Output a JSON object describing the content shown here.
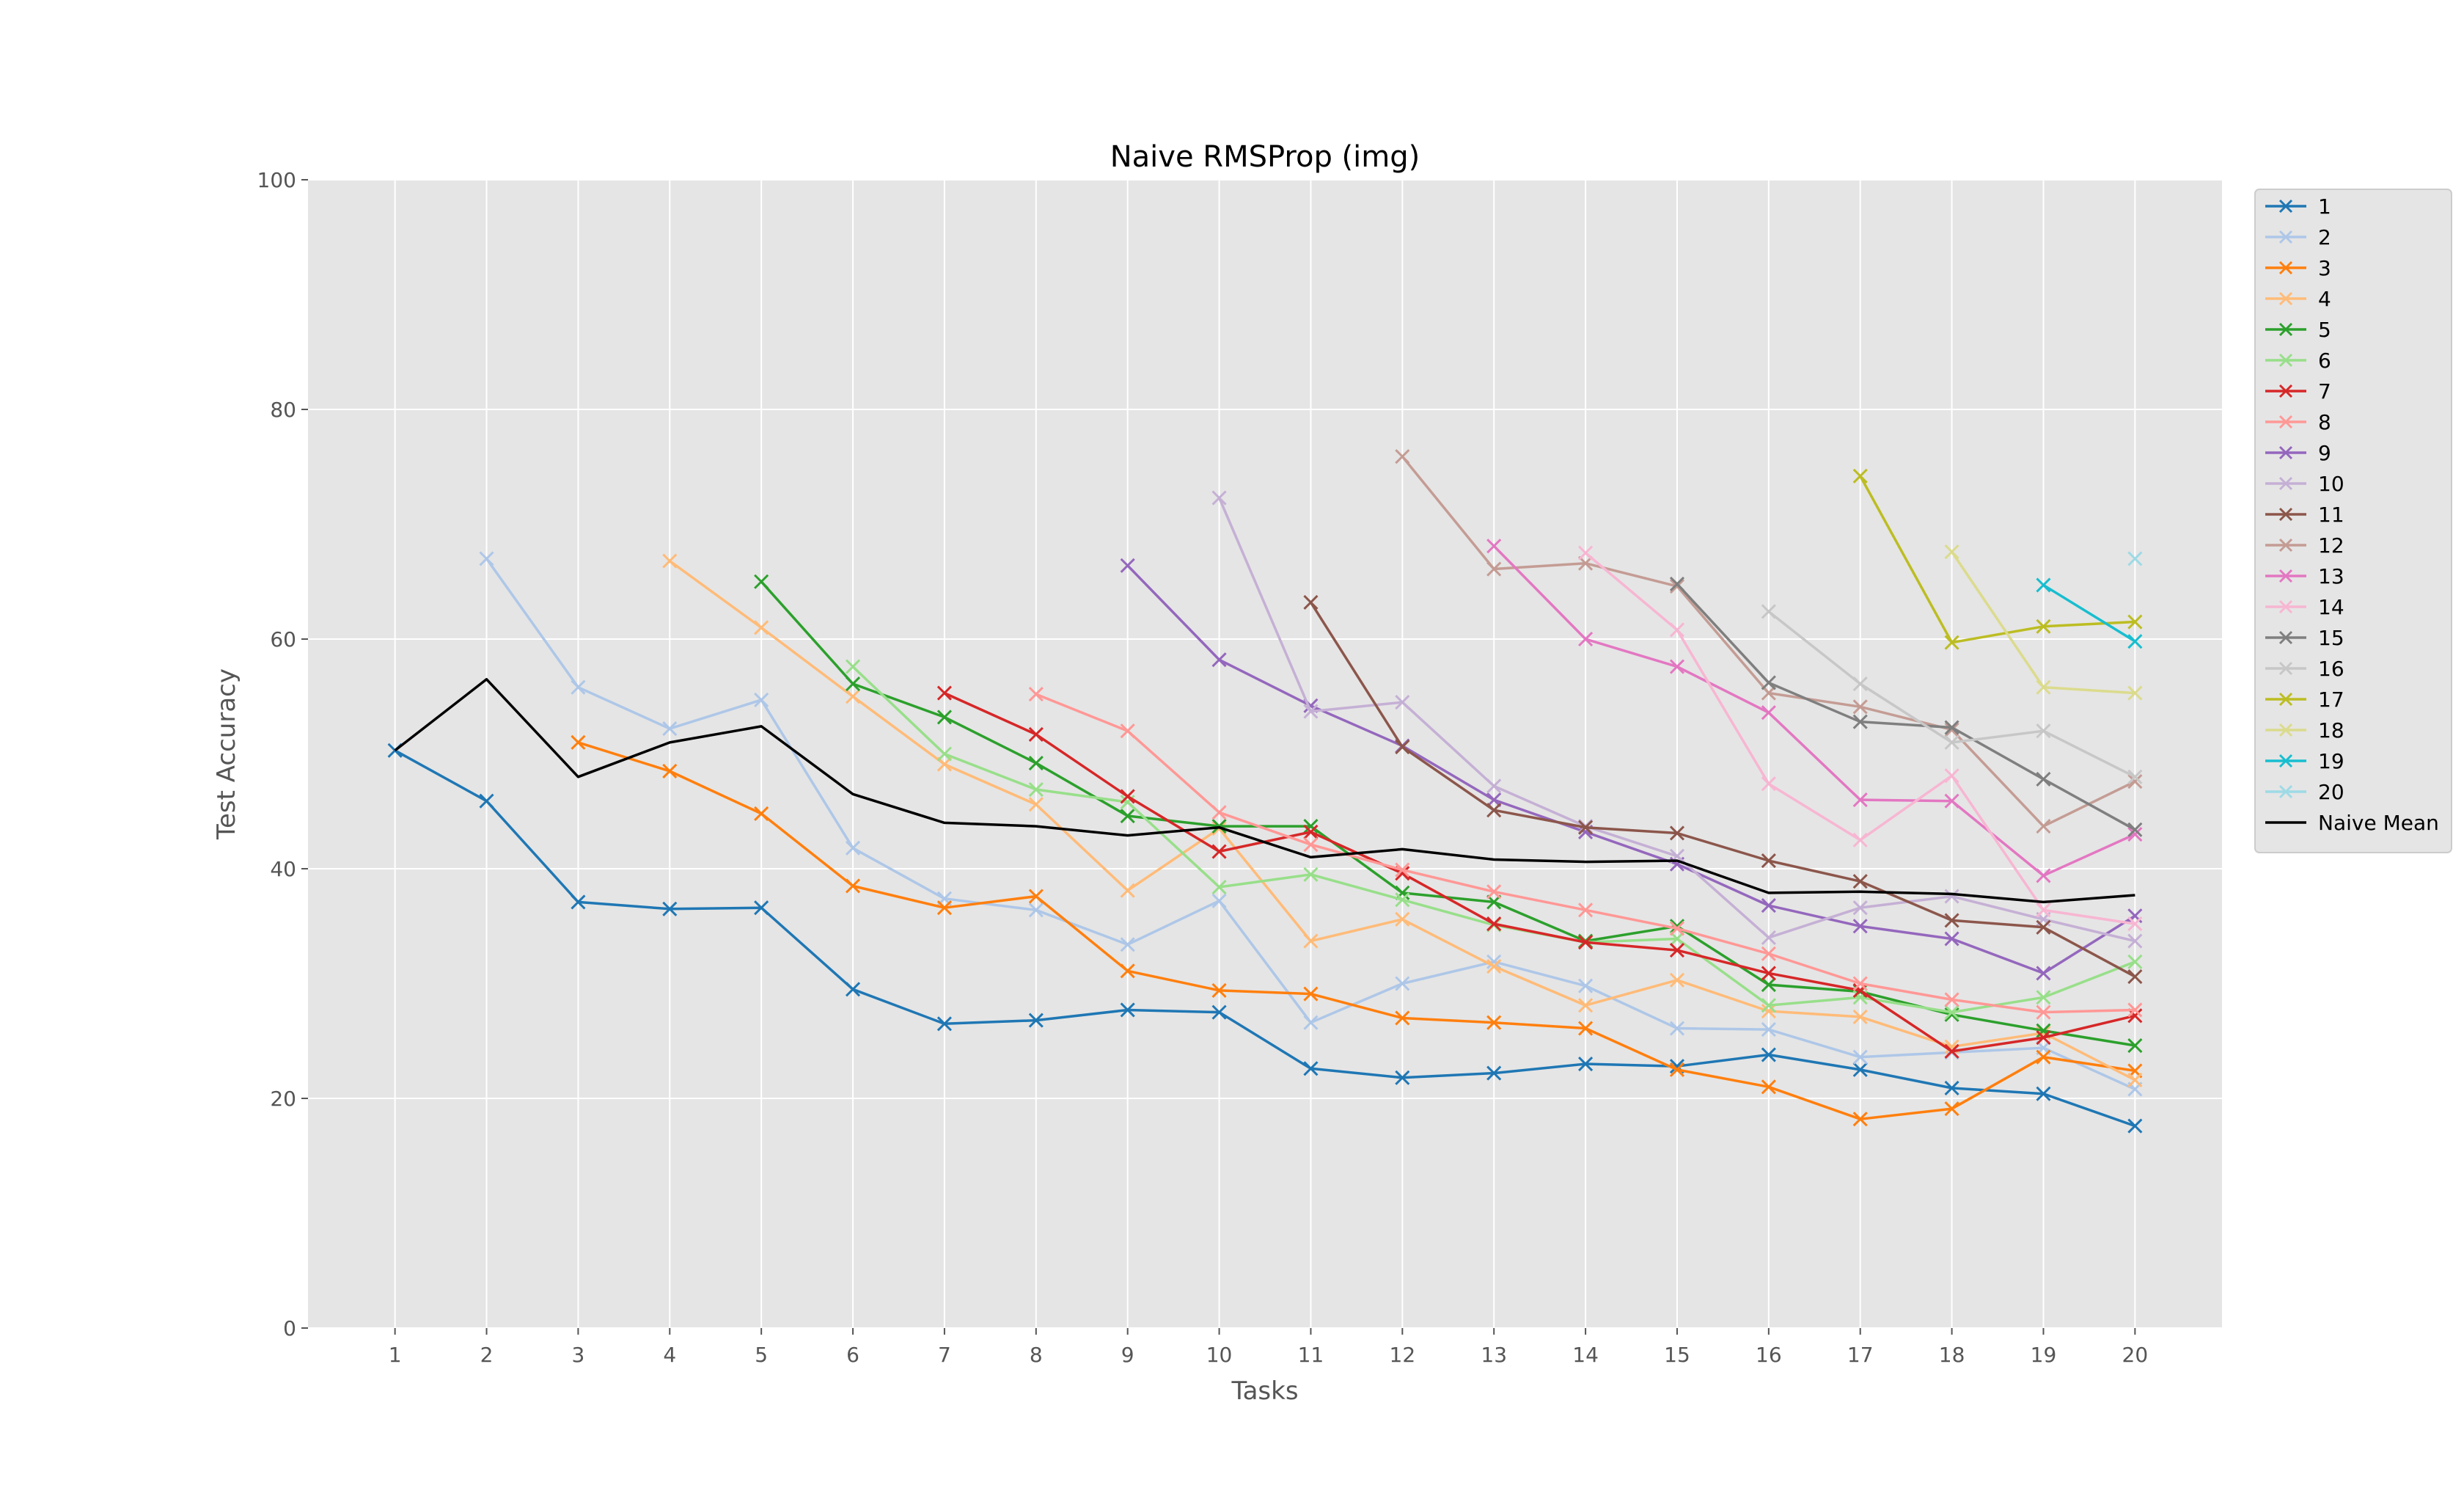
{
  "chart_data": {
    "type": "line",
    "title": "Naive RMSProp (img)",
    "xlabel": "Tasks",
    "ylabel": "Test Accuracy",
    "xlim": [
      0.05,
      20.95
    ],
    "ylim": [
      0,
      100
    ],
    "x_ticks": [
      1,
      2,
      3,
      4,
      5,
      6,
      7,
      8,
      9,
      10,
      11,
      12,
      13,
      14,
      15,
      16,
      17,
      18,
      19,
      20
    ],
    "y_ticks": [
      0,
      20,
      40,
      60,
      80,
      100
    ],
    "grid": true,
    "marker": "x",
    "legend_position": "outside-right-top",
    "series": [
      {
        "name": "1",
        "color": "#1f77b4",
        "start": 1,
        "values": [
          50.3,
          45.9,
          37.1,
          36.5,
          36.6,
          29.5,
          26.5,
          26.8,
          27.7,
          27.5,
          22.6,
          21.8,
          22.2,
          23.0,
          22.8,
          23.8,
          22.5,
          20.9,
          20.4,
          17.6
        ]
      },
      {
        "name": "2",
        "color": "#aec7e8",
        "start": 2,
        "values": [
          67.0,
          55.8,
          52.2,
          54.7,
          41.8,
          37.4,
          36.4,
          33.4,
          37.2,
          26.6,
          30.0,
          31.9,
          29.8,
          26.1,
          26.0,
          23.6,
          24.0,
          24.4,
          20.8
        ]
      },
      {
        "name": "3",
        "color": "#ff7f0e",
        "start": 3,
        "values": [
          51.0,
          48.5,
          44.8,
          38.5,
          36.6,
          37.6,
          31.1,
          29.4,
          29.1,
          27.0,
          26.6,
          26.1,
          22.5,
          21.0,
          18.2,
          19.1,
          23.6,
          22.4
        ]
      },
      {
        "name": "4",
        "color": "#ffbb78",
        "start": 4,
        "values": [
          66.8,
          61.0,
          55.0,
          49.1,
          45.6,
          38.1,
          43.5,
          33.7,
          35.6,
          31.5,
          28.1,
          30.3,
          27.6,
          27.1,
          24.5,
          25.7,
          21.6
        ]
      },
      {
        "name": "5",
        "color": "#2ca02c",
        "start": 5,
        "values": [
          65.0,
          56.1,
          53.2,
          49.2,
          44.6,
          43.7,
          43.7,
          37.9,
          37.1,
          33.7,
          35.0,
          29.9,
          29.3,
          27.3,
          25.9,
          24.6
        ]
      },
      {
        "name": "6",
        "color": "#98df8a",
        "start": 6,
        "values": [
          57.6,
          50.0,
          46.9,
          45.8,
          38.4,
          39.5,
          37.3,
          35.1,
          33.6,
          33.9,
          28.1,
          28.8,
          27.5,
          28.8,
          31.9
        ]
      },
      {
        "name": "7",
        "color": "#d62728",
        "start": 7,
        "values": [
          55.3,
          51.7,
          46.3,
          41.5,
          43.2,
          39.6,
          35.2,
          33.6,
          32.9,
          30.9,
          29.4,
          24.1,
          25.3,
          27.2
        ]
      },
      {
        "name": "8",
        "color": "#ff9896",
        "start": 8,
        "values": [
          55.2,
          52.0,
          44.9,
          42.1,
          39.9,
          38.0,
          36.4,
          34.8,
          32.6,
          30.0,
          28.6,
          27.5,
          27.7
        ]
      },
      {
        "name": "9",
        "color": "#9467bd",
        "start": 9,
        "values": [
          66.4,
          58.2,
          54.2,
          50.7,
          46.0,
          43.2,
          40.4,
          36.8,
          35.0,
          33.9,
          30.9,
          35.9
        ]
      },
      {
        "name": "10",
        "color": "#c5b0d5",
        "start": 10,
        "values": [
          72.3,
          53.7,
          54.5,
          47.2,
          43.7,
          41.1,
          34.0,
          36.6,
          37.6,
          35.6,
          33.7
        ]
      },
      {
        "name": "11",
        "color": "#8c564b",
        "start": 11,
        "values": [
          63.2,
          50.6,
          45.1,
          43.6,
          43.1,
          40.7,
          38.9,
          35.5,
          34.9,
          30.6
        ]
      },
      {
        "name": "12",
        "color": "#c49c94",
        "start": 12,
        "values": [
          75.9,
          66.1,
          66.6,
          64.6,
          55.3,
          54.1,
          52.1,
          43.7,
          47.6
        ]
      },
      {
        "name": "13",
        "color": "#e377c2",
        "start": 13,
        "values": [
          68.1,
          60.0,
          57.6,
          53.6,
          46.0,
          45.9,
          39.4,
          43.0
        ]
      },
      {
        "name": "14",
        "color": "#f7b6d2",
        "start": 14,
        "values": [
          67.5,
          60.8,
          47.4,
          42.5,
          48.1,
          36.4,
          35.2
        ]
      },
      {
        "name": "15",
        "color": "#7f7f7f",
        "start": 15,
        "values": [
          64.8,
          56.2,
          52.8,
          52.3,
          47.8,
          43.4
        ]
      },
      {
        "name": "16",
        "color": "#c7c7c7",
        "start": 16,
        "values": [
          62.4,
          56.1,
          51.0,
          52.0,
          48.0
        ]
      },
      {
        "name": "17",
        "color": "#bcbd22",
        "start": 17,
        "values": [
          74.2,
          59.7,
          61.1,
          61.5
        ]
      },
      {
        "name": "18",
        "color": "#dbdb8d",
        "start": 18,
        "values": [
          67.6,
          55.8,
          55.3
        ]
      },
      {
        "name": "19",
        "color": "#17becf",
        "start": 19,
        "values": [
          64.7,
          59.8
        ]
      },
      {
        "name": "20",
        "color": "#9edae5",
        "start": 20,
        "values": [
          67.0
        ]
      },
      {
        "name": "Naive Mean",
        "color": "#000000",
        "start": 1,
        "marker": "none",
        "values": [
          50.3,
          56.5,
          48.0,
          51.0,
          52.4,
          46.5,
          44.0,
          43.7,
          42.9,
          43.6,
          41.0,
          41.7,
          40.8,
          40.6,
          40.7,
          37.9,
          38.0,
          37.8,
          37.1,
          37.7
        ]
      }
    ]
  }
}
